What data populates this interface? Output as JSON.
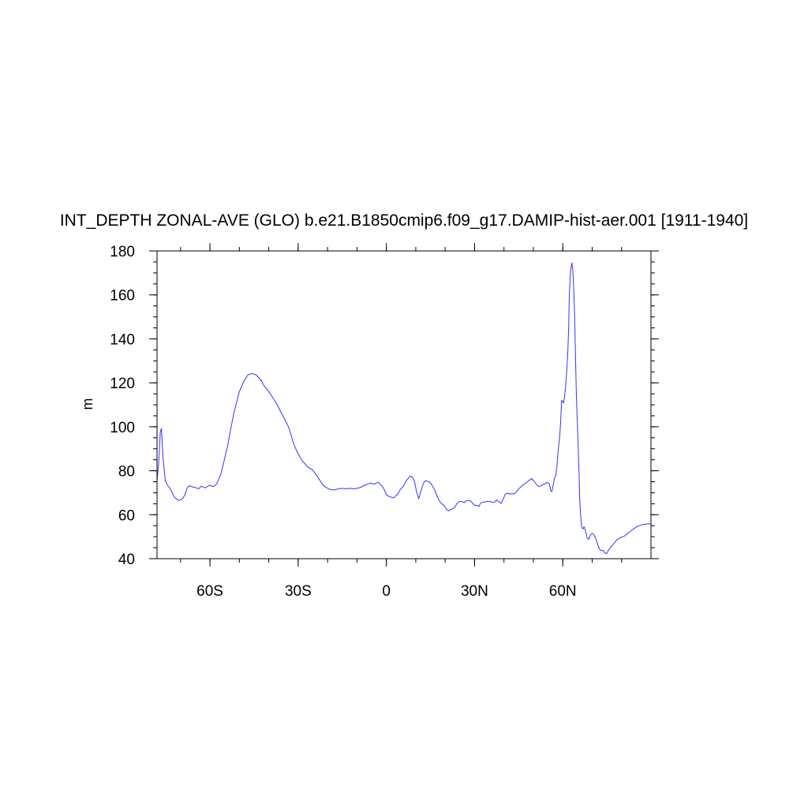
{
  "chart_data": {
    "type": "line",
    "title": "INT_DEPTH ZONAL-AVE (GLO) b.e21.B1850cmip6.f09_g17.DAMIP-hist-aer.001 [1911-1940]",
    "xlabel": "",
    "ylabel": "m",
    "xlim": [
      -78,
      90
    ],
    "ylim": [
      40,
      180
    ],
    "x_ticks": [
      {
        "value": -60,
        "label": "60S"
      },
      {
        "value": -30,
        "label": "30S"
      },
      {
        "value": 0,
        "label": "0"
      },
      {
        "value": 30,
        "label": "30N"
      },
      {
        "value": 60,
        "label": "60N"
      }
    ],
    "y_ticks": [
      {
        "value": 40,
        "label": "40"
      },
      {
        "value": 60,
        "label": "60"
      },
      {
        "value": 80,
        "label": "80"
      },
      {
        "value": 100,
        "label": "100"
      },
      {
        "value": 120,
        "label": "120"
      },
      {
        "value": 140,
        "label": "140"
      },
      {
        "value": 160,
        "label": "160"
      },
      {
        "value": 180,
        "label": "180"
      }
    ],
    "grid": false,
    "line_color": "#3333ff",
    "series": [
      {
        "x": [
          -78.0,
          -77.4,
          -77.1,
          -76.9,
          -76.5,
          -76.0,
          -75.2,
          -74.5,
          -73.8,
          -73.0,
          -72.2,
          -71.4,
          -70.5,
          -69.9,
          -69.2,
          -68.5,
          -67.8,
          -67.0,
          -66.3,
          -65.4,
          -64.6,
          -63.8,
          -63.0,
          -61.6,
          -60.2,
          -58.9,
          -57.7,
          -56.4,
          -55.2,
          -54.0,
          -53.0,
          -52.0,
          -51.0,
          -50.0,
          -48.5,
          -47.1,
          -45.7,
          -44.3,
          -42.8,
          -41.5,
          -40.0,
          -38.7,
          -37.3,
          -36.0,
          -34.6,
          -33.3,
          -32.4,
          -31.5,
          -30.2,
          -29.0,
          -27.7,
          -26.5,
          -25.2,
          -24.0,
          -22.6,
          -21.4,
          -20.2,
          -18.8,
          -17.6,
          -16.3,
          -15.0,
          -13.8,
          -12.6,
          -11.3,
          -10.0,
          -8.7,
          -7.4,
          -6.2,
          -5.4,
          -4.7,
          -4.1,
          -3.4,
          -2.8,
          -2.3,
          -1.9,
          -1.3,
          -0.7,
          -0.3,
          0.2,
          0.8,
          1.4,
          1.9,
          2.6,
          3.3,
          4.0,
          4.7,
          5.3,
          6.0,
          6.7,
          7.4,
          8.1,
          8.9,
          9.6,
          10.3,
          11.0,
          11.8,
          12.6,
          13.3,
          14.1,
          14.9,
          15.7,
          16.5,
          17.3,
          18.1,
          18.8,
          19.6,
          20.4,
          21.2,
          22.0,
          22.7,
          23.4,
          24.1,
          24.9,
          25.7,
          26.5,
          27.2,
          28.0,
          28.7,
          29.5,
          30.2,
          30.9,
          31.5,
          32.1,
          32.9,
          33.7,
          34.5,
          35.3,
          36.0,
          36.7,
          37.5,
          38.2,
          39.0,
          39.7,
          40.4,
          41.2,
          42.0,
          42.7,
          43.4,
          44.2,
          45.0,
          45.8,
          46.5,
          47.3,
          48.0,
          48.7,
          49.4,
          50.0,
          50.6,
          51.3,
          51.9,
          52.5,
          53.1,
          53.8,
          54.4,
          54.9,
          55.5,
          55.9,
          56.3,
          56.8,
          57.2,
          57.6,
          58.0,
          58.3,
          58.7,
          59.0,
          59.3,
          59.6,
          60.0,
          60.3,
          60.6,
          61.0,
          61.3,
          61.7,
          62.0,
          62.2,
          62.5,
          62.8,
          63.1,
          63.4,
          63.7,
          64.0,
          64.3,
          64.6,
          64.9,
          65.2,
          65.5,
          65.8,
          66.1,
          66.4,
          66.8,
          67.3,
          67.8,
          68.3,
          68.8,
          69.3,
          69.9,
          70.5,
          71.1,
          71.7,
          72.4,
          73.1,
          73.7,
          74.3,
          74.9,
          75.6,
          76.4,
          77.3,
          78.3,
          79.5,
          81.0,
          82.5,
          84.0,
          85.5,
          87.0,
          88.5,
          90.0
        ],
        "y": [
          75.5,
          84.0,
          92.0,
          97.5,
          99.3,
          86.5,
          75.6,
          73.6,
          72.3,
          70.5,
          68.2,
          67.2,
          66.5,
          66.8,
          67.5,
          69.2,
          72.0,
          73.2,
          72.8,
          72.5,
          72.2,
          71.8,
          73.0,
          72.2,
          73.4,
          72.8,
          74.0,
          78.0,
          84.5,
          91.2,
          98.5,
          105.5,
          110.8,
          116.0,
          120.6,
          123.6,
          124.3,
          123.6,
          121.5,
          118.5,
          116.0,
          113.4,
          110.4,
          107.0,
          103.5,
          100.0,
          96.2,
          92.0,
          88.3,
          85.3,
          83.2,
          81.5,
          80.5,
          78.5,
          75.6,
          73.3,
          72.2,
          71.3,
          71.3,
          71.8,
          72.0,
          71.8,
          72.0,
          71.8,
          72.0,
          72.5,
          73.4,
          74.0,
          74.4,
          74.2,
          73.8,
          74.5,
          74.7,
          74.1,
          73.6,
          72.8,
          71.4,
          70.0,
          68.8,
          68.4,
          68.2,
          67.8,
          67.7,
          68.8,
          69.5,
          71.5,
          72.2,
          73.5,
          75.3,
          76.5,
          77.5,
          77.2,
          75.0,
          70.3,
          67.3,
          71.0,
          74.3,
          75.5,
          75.2,
          74.7,
          73.0,
          71.2,
          68.3,
          66.2,
          65.0,
          64.3,
          62.5,
          61.7,
          62.4,
          62.8,
          63.6,
          65.3,
          66.0,
          66.0,
          65.5,
          66.3,
          66.6,
          66.2,
          65.0,
          64.2,
          64.3,
          63.8,
          65.4,
          65.7,
          65.9,
          66.1,
          66.0,
          65.6,
          65.6,
          66.7,
          65.9,
          65.2,
          67.0,
          69.3,
          69.8,
          69.4,
          69.5,
          69.5,
          70.3,
          71.8,
          72.7,
          73.6,
          74.3,
          75.0,
          75.8,
          76.5,
          75.6,
          74.6,
          73.4,
          72.8,
          73.1,
          73.5,
          74.0,
          74.5,
          74.6,
          73.9,
          71.0,
          70.5,
          74.0,
          77.0,
          77.5,
          82.0,
          87.5,
          92.5,
          96.3,
          103.0,
          112.0,
          111.6,
          110.8,
          113.5,
          118.5,
          124.5,
          133.0,
          145.0,
          158.5,
          167.5,
          172.2,
          174.5,
          171.5,
          163.5,
          152.0,
          135.0,
          115.0,
          103.5,
          93.0,
          80.5,
          66.2,
          59.2,
          55.0,
          53.5,
          54.5,
          52.2,
          49.5,
          48.8,
          50.5,
          51.5,
          51.2,
          49.5,
          47.3,
          44.6,
          43.6,
          43.8,
          42.6,
          42.3,
          43.9,
          45.4,
          46.8,
          48.5,
          49.5,
          50.3,
          52.0,
          53.5,
          54.8,
          55.5,
          55.8,
          55.8
        ]
      }
    ]
  }
}
